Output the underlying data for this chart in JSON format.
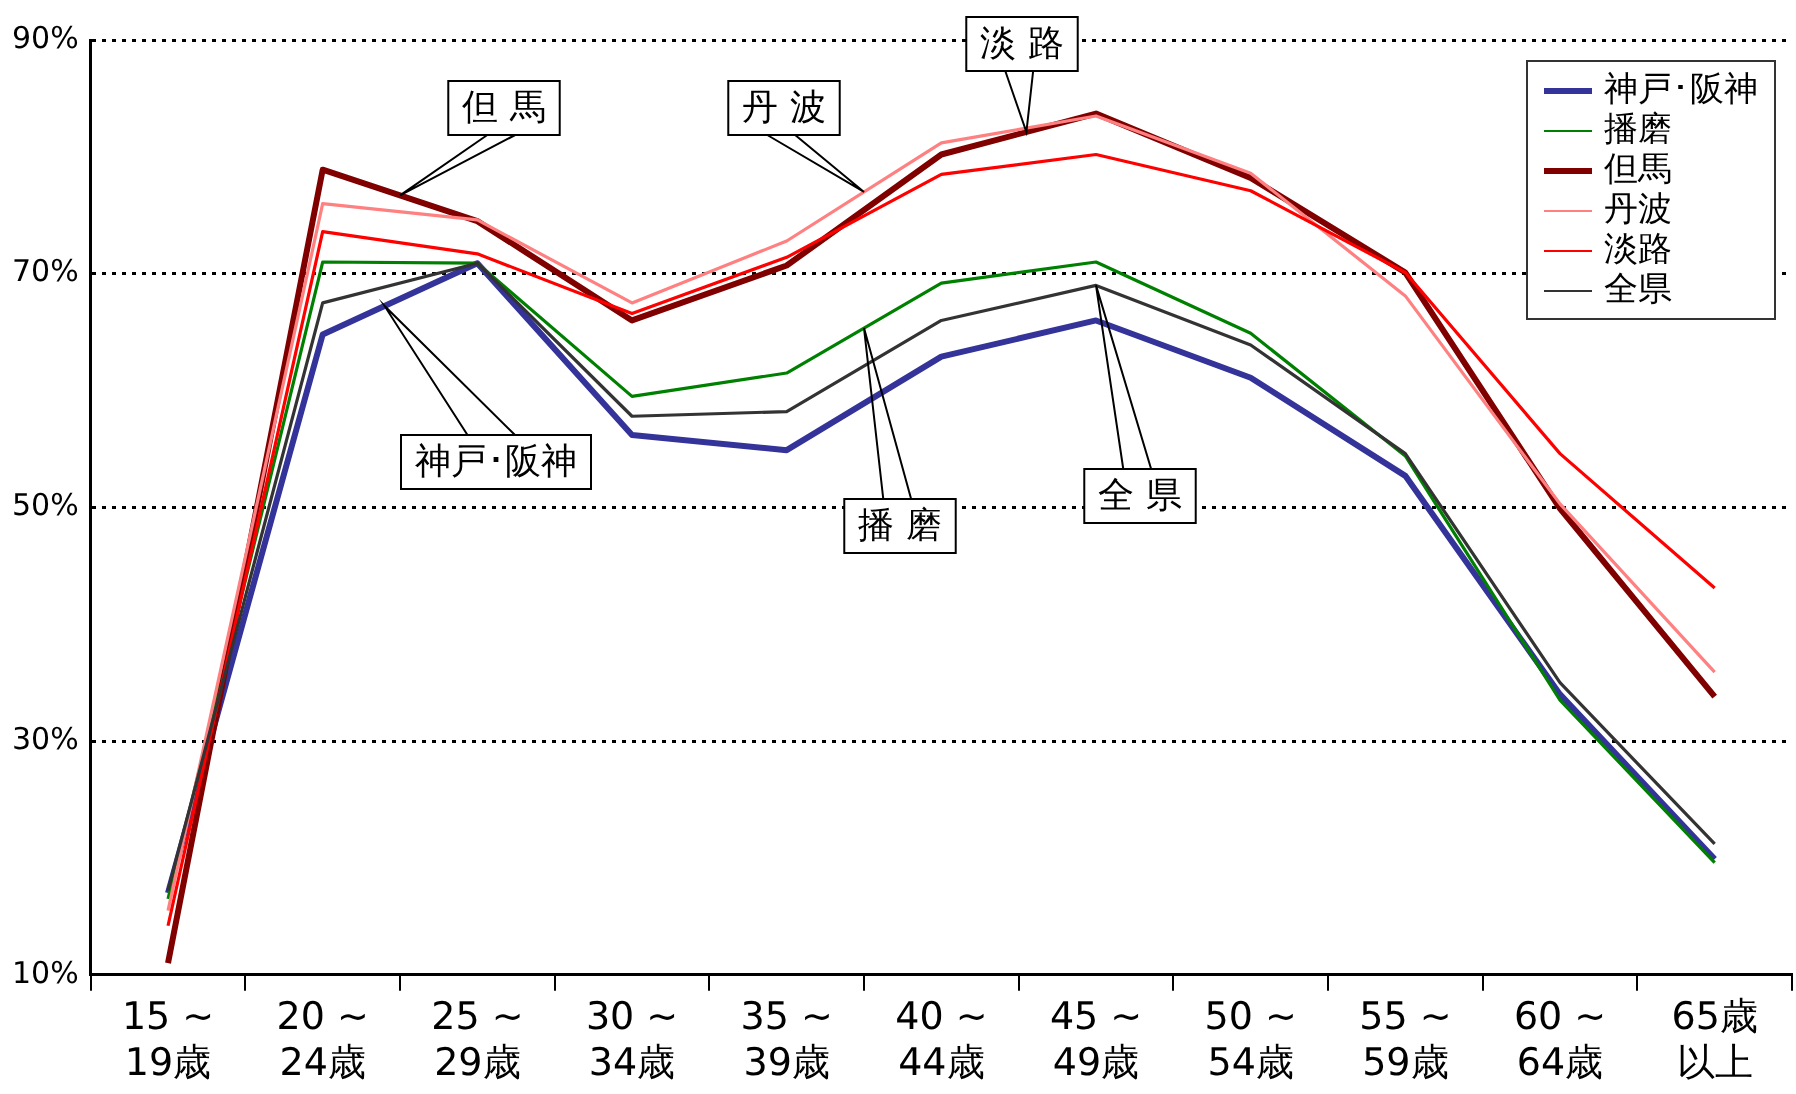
{
  "chart_data": {
    "type": "line",
    "categories": [
      "15 ~ 19歳",
      "20 ~ 24歳",
      "25 ~ 29歳",
      "30 ~ 34歳",
      "35 ~ 39歳",
      "40 ~ 44歳",
      "45 ~ 49歳",
      "50 ~ 54歳",
      "55 ~ 59歳",
      "60 ~ 64歳",
      "65歳以上"
    ],
    "series": [
      {
        "name": "神戸･阪神",
        "color": "#333399",
        "values": [
          17,
          64.8,
          70.9,
          56.2,
          54.9,
          62.9,
          66.0,
          61.1,
          52.7,
          34.0,
          19.9
        ]
      },
      {
        "name": "播磨",
        "color": "#008000",
        "values": [
          16.5,
          71.0,
          70.9,
          59.5,
          61.5,
          69.2,
          71.0,
          64.9,
          54.4,
          33.5,
          19.6
        ]
      },
      {
        "name": "但馬",
        "color": "#800000",
        "values": [
          11,
          78.9,
          74.5,
          66.0,
          70.7,
          80.2,
          83.7,
          78.2,
          70.1,
          49.9,
          33.8
        ]
      },
      {
        "name": "丹波",
        "color": "#ff8080",
        "values": [
          15.5,
          76.0,
          74.6,
          67.5,
          72.8,
          81.2,
          83.5,
          78.6,
          68.1,
          50.3,
          35.9
        ]
      },
      {
        "name": "淡路",
        "color": "#ff0000",
        "values": [
          14.2,
          73.6,
          71.7,
          66.6,
          71.4,
          78.5,
          80.2,
          77.1,
          70.1,
          54.6,
          43.1
        ]
      },
      {
        "name": "全県",
        "color": "#333333",
        "values": [
          17.2,
          67.5,
          70.9,
          57.8,
          58.2,
          66.0,
          69.0,
          63.9,
          54.6,
          35.0,
          21.2
        ]
      }
    ],
    "ylim": [
      10,
      90
    ],
    "yticks": [
      {
        "value": 10,
        "label": "10%"
      },
      {
        "value": 30,
        "label": "30%"
      },
      {
        "value": 50,
        "label": "50%"
      },
      {
        "value": 70,
        "label": "70%"
      },
      {
        "value": 90,
        "label": "90%"
      }
    ],
    "grid": "y",
    "legend": "top right",
    "marker": "none",
    "line_style": "solid",
    "annotations": [
      "但 馬",
      "丹 波",
      "淡 路",
      "神戸･阪神",
      "播 磨",
      "全 県"
    ]
  }
}
